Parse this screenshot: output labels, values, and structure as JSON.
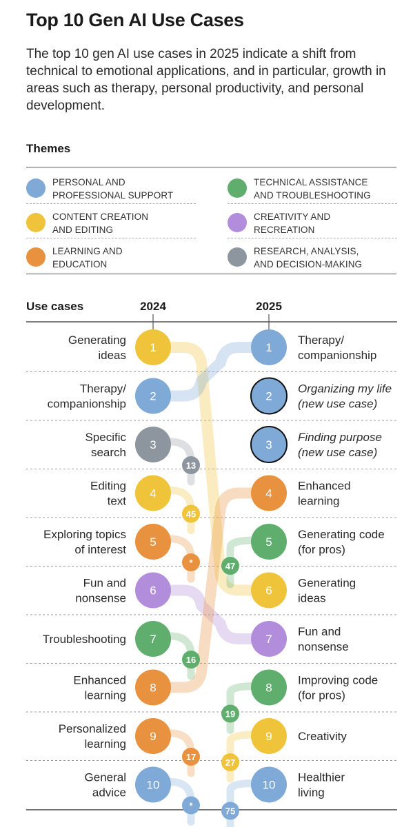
{
  "title": "Top 10 Gen AI Use Cases",
  "subtitle": "The top 10 gen AI use cases in 2025 indicate a shift from technical to emotional applications, and in particular, growth in areas such as therapy, personal productivity, and personal development.",
  "colors": {
    "personal": "#7fa9d6",
    "content": "#efc43a",
    "learning": "#e8913e",
    "technical": "#5fae6e",
    "creativity": "#b18ddb",
    "research": "#8d969e"
  },
  "themes_heading": "Themes",
  "themes": [
    {
      "key": "personal",
      "label_line1": "Personal and",
      "label_line2": "professional support"
    },
    {
      "key": "content",
      "label_line1": "Content creation",
      "label_line2": "and editing"
    },
    {
      "key": "learning",
      "label_line1": "Learning and",
      "label_line2": "education"
    },
    {
      "key": "technical",
      "label_line1": "Technical assistance",
      "label_line2": "and troubleshooting"
    },
    {
      "key": "creativity",
      "label_line1": "Creativity and",
      "label_line2": "recreation"
    },
    {
      "key": "research",
      "label_line1": "Research, analysis,",
      "label_line2": "and decision-making"
    }
  ],
  "chart_data": {
    "type": "slope",
    "column_header_left": "Use cases",
    "year_left": "2024",
    "year_right": "2025",
    "left": [
      {
        "rank": "1",
        "label": [
          "Generating",
          "ideas"
        ],
        "theme": "content"
      },
      {
        "rank": "2",
        "label": [
          "Therapy/",
          "companionship"
        ],
        "theme": "personal"
      },
      {
        "rank": "3",
        "label": [
          "Specific",
          "search"
        ],
        "theme": "research"
      },
      {
        "rank": "4",
        "label": [
          "Editing",
          "text"
        ],
        "theme": "content"
      },
      {
        "rank": "5",
        "label": [
          "Exploring topics",
          "of interest"
        ],
        "theme": "learning"
      },
      {
        "rank": "6",
        "label": [
          "Fun and",
          "nonsense"
        ],
        "theme": "creativity"
      },
      {
        "rank": "7",
        "label": [
          "Troubleshooting"
        ],
        "theme": "technical"
      },
      {
        "rank": "8",
        "label": [
          "Enhanced",
          "learning"
        ],
        "theme": "learning"
      },
      {
        "rank": "9",
        "label": [
          "Personalized",
          "learning"
        ],
        "theme": "learning"
      },
      {
        "rank": "10",
        "label": [
          "General",
          "advice"
        ],
        "theme": "personal"
      }
    ],
    "right": [
      {
        "rank": "1",
        "label": [
          "Therapy/",
          "companionship"
        ],
        "theme": "personal",
        "italic": false,
        "new": false
      },
      {
        "rank": "2",
        "label": [
          "Organizing my life",
          "(new use case)"
        ],
        "theme": "personal",
        "italic": true,
        "new": true
      },
      {
        "rank": "3",
        "label": [
          "Finding purpose",
          "(new use case)"
        ],
        "theme": "personal",
        "italic": true,
        "new": true
      },
      {
        "rank": "4",
        "label": [
          "Enhanced",
          "learning"
        ],
        "theme": "learning",
        "italic": false,
        "new": false
      },
      {
        "rank": "5",
        "label": [
          "Generating code",
          "(for pros)"
        ],
        "theme": "technical",
        "italic": false,
        "new": false
      },
      {
        "rank": "6",
        "label": [
          "Generating",
          "ideas"
        ],
        "theme": "content",
        "italic": false,
        "new": false
      },
      {
        "rank": "7",
        "label": [
          "Fun and",
          "nonsense"
        ],
        "theme": "creativity",
        "italic": false,
        "new": false
      },
      {
        "rank": "8",
        "label": [
          "Improving code",
          "(for pros)"
        ],
        "theme": "technical",
        "italic": false,
        "new": false
      },
      {
        "rank": "9",
        "label": [
          "Creativity"
        ],
        "theme": "content",
        "italic": false,
        "new": false
      },
      {
        "rank": "10",
        "label": [
          "Healthier",
          "living"
        ],
        "theme": "personal",
        "italic": false,
        "new": false
      }
    ],
    "links": [
      {
        "from": 1,
        "to": 6
      },
      {
        "from": 2,
        "to": 1
      },
      {
        "from": 6,
        "to": 7
      },
      {
        "from": 8,
        "to": 4
      }
    ],
    "dropped_out": [
      {
        "from": 3,
        "new_rank": "13",
        "theme": "research"
      },
      {
        "from": 4,
        "new_rank": "45",
        "theme": "content"
      },
      {
        "from": 5,
        "new_rank": "*",
        "theme": "learning"
      },
      {
        "from": 7,
        "new_rank": "16",
        "theme": "technical"
      },
      {
        "from": 9,
        "new_rank": "17",
        "theme": "learning"
      },
      {
        "from": 10,
        "new_rank": "*",
        "theme": "personal"
      }
    ],
    "new_entries": [
      {
        "to": 5,
        "prev_rank": "47",
        "theme": "technical"
      },
      {
        "to": 8,
        "prev_rank": "19",
        "theme": "technical"
      },
      {
        "to": 9,
        "prev_rank": "27",
        "theme": "content"
      },
      {
        "to": 10,
        "prev_rank": "75",
        "theme": "personal"
      }
    ]
  }
}
